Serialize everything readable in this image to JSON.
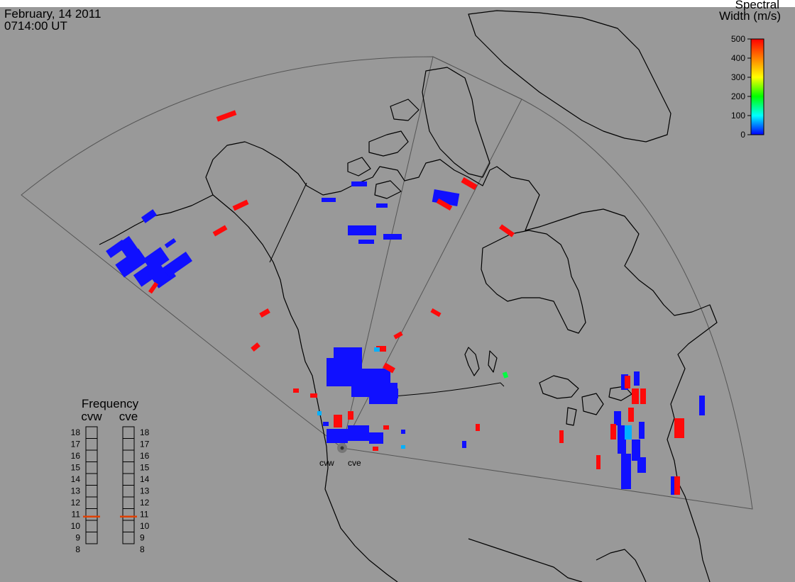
{
  "header": {
    "date": "February, 14 2011",
    "time": "0714:00 UT"
  },
  "colorbar": {
    "title_line1": "Spectral",
    "title_line2": "Width (m/s)",
    "ticks": [
      "0",
      "100",
      "200",
      "300",
      "400",
      "500"
    ],
    "range": [
      0,
      500
    ],
    "colors": [
      "#0000ff",
      "#00ffff",
      "#00ff00",
      "#ffff00",
      "#ff8000",
      "#ff0000"
    ]
  },
  "frequency_panel": {
    "title": "Frequency",
    "left_label": "cvw",
    "right_label": "cve",
    "ticks": [
      "18",
      "17",
      "16",
      "15",
      "14",
      "13",
      "12",
      "11",
      "10",
      "9",
      "8"
    ],
    "cvw_value": 10.8,
    "cve_value": 10.8,
    "marker_color": "#e04000"
  },
  "radars": [
    {
      "code": "cvw"
    },
    {
      "code": "cve"
    }
  ],
  "colors": {
    "background": "#999999",
    "land_outline": "#000000",
    "fov_outline": "#555555"
  }
}
